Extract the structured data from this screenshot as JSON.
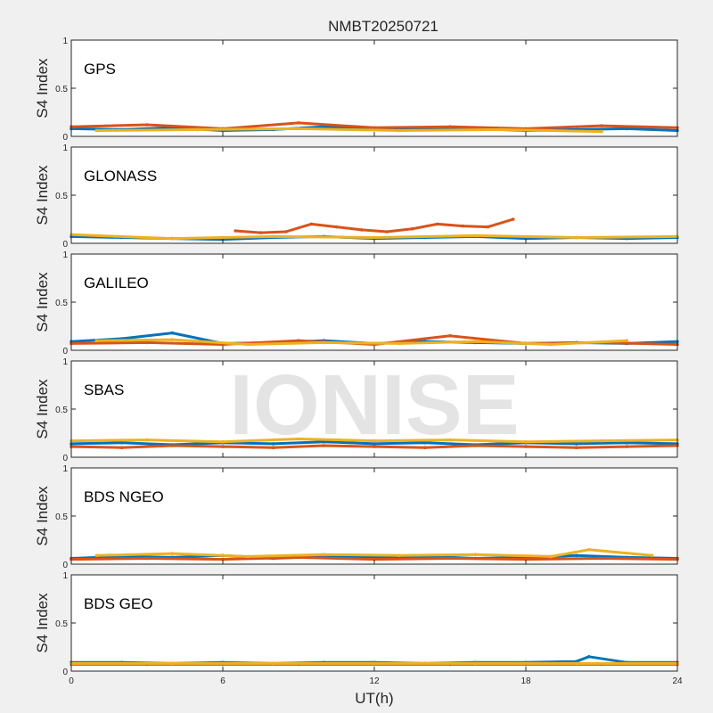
{
  "figure": {
    "title": "NMBT20250721",
    "xlabel": "UT(h)",
    "watermark": "IONISE",
    "x_ticks": [
      0,
      6,
      12,
      18,
      24
    ],
    "y_ticks": [
      0,
      0.5,
      1
    ],
    "xlim": [
      0,
      24
    ],
    "ylim": [
      0,
      1
    ]
  },
  "colors": [
    "#0072BD",
    "#D95319",
    "#EDB120",
    "#7E2F8E",
    "#77AC30",
    "#4DBEEE",
    "#A2142F"
  ],
  "chart_data": [
    {
      "type": "scatter",
      "title": "GPS",
      "ylabel": "S4 Index",
      "xlim": [
        0,
        24
      ],
      "ylim": [
        0,
        1
      ],
      "series": [
        {
          "x": [
            0,
            2,
            4,
            6,
            8,
            10,
            12,
            14,
            16,
            18,
            20,
            22,
            24
          ],
          "y": [
            0.08,
            0.07,
            0.09,
            0.06,
            0.07,
            0.1,
            0.08,
            0.07,
            0.08,
            0.06,
            0.07,
            0.08,
            0.06
          ]
        },
        {
          "x": [
            0,
            3,
            6,
            9,
            12,
            15,
            18,
            21,
            24
          ],
          "y": [
            0.1,
            0.12,
            0.08,
            0.14,
            0.09,
            0.1,
            0.08,
            0.11,
            0.09
          ]
        },
        {
          "x": [
            1,
            5,
            9,
            13,
            17,
            21
          ],
          "y": [
            0.06,
            0.07,
            0.08,
            0.06,
            0.07,
            0.05
          ]
        }
      ]
    },
    {
      "type": "scatter",
      "title": "GLONASS",
      "ylabel": "S4 Index",
      "xlim": [
        0,
        24
      ],
      "ylim": [
        0,
        1
      ],
      "series": [
        {
          "x": [
            0,
            2,
            4,
            6,
            8,
            10,
            12,
            14,
            16,
            18,
            20,
            22,
            24
          ],
          "y": [
            0.07,
            0.06,
            0.05,
            0.04,
            0.06,
            0.07,
            0.05,
            0.06,
            0.07,
            0.05,
            0.06,
            0.05,
            0.06
          ]
        },
        {
          "x": [
            6.5,
            7.5,
            8.5,
            9.5,
            10.5,
            11.5,
            12.5,
            13.5,
            14.5,
            15.5,
            16.5,
            17.5
          ],
          "y": [
            0.13,
            0.11,
            0.12,
            0.2,
            0.17,
            0.14,
            0.12,
            0.15,
            0.2,
            0.18,
            0.17,
            0.25
          ]
        },
        {
          "x": [
            0,
            4,
            8,
            12,
            16,
            20,
            24
          ],
          "y": [
            0.09,
            0.05,
            0.07,
            0.06,
            0.08,
            0.06,
            0.07
          ]
        }
      ]
    },
    {
      "type": "scatter",
      "title": "GALILEO",
      "ylabel": "S4 Index",
      "xlim": [
        0,
        24
      ],
      "ylim": [
        0,
        1
      ],
      "series": [
        {
          "x": [
            0,
            2,
            4,
            6,
            8,
            10,
            12,
            14,
            16,
            18,
            20,
            22,
            24
          ],
          "y": [
            0.09,
            0.12,
            0.18,
            0.07,
            0.08,
            0.1,
            0.07,
            0.09,
            0.08,
            0.07,
            0.08,
            0.07,
            0.09
          ]
        },
        {
          "x": [
            0,
            3,
            6,
            9,
            12,
            15,
            18,
            21,
            24
          ],
          "y": [
            0.07,
            0.08,
            0.06,
            0.1,
            0.06,
            0.15,
            0.07,
            0.08,
            0.06
          ]
        },
        {
          "x": [
            1,
            4,
            7,
            10,
            13,
            16,
            19,
            22
          ],
          "y": [
            0.1,
            0.11,
            0.06,
            0.08,
            0.07,
            0.09,
            0.06,
            0.1
          ]
        }
      ]
    },
    {
      "type": "scatter",
      "title": "SBAS",
      "ylabel": "S4 Index",
      "xlim": [
        0,
        24
      ],
      "ylim": [
        0,
        1
      ],
      "series": [
        {
          "x": [
            0,
            2,
            4,
            6,
            8,
            10,
            12,
            14,
            16,
            18,
            20,
            22,
            24
          ],
          "y": [
            0.14,
            0.15,
            0.13,
            0.15,
            0.14,
            0.16,
            0.14,
            0.15,
            0.13,
            0.15,
            0.14,
            0.15,
            0.14
          ]
        },
        {
          "x": [
            0,
            2,
            4,
            6,
            8,
            10,
            12,
            14,
            16,
            18,
            20,
            22,
            24
          ],
          "y": [
            0.11,
            0.1,
            0.12,
            0.11,
            0.1,
            0.12,
            0.11,
            0.1,
            0.12,
            0.11,
            0.1,
            0.11,
            0.12
          ]
        },
        {
          "x": [
            0,
            3,
            6,
            9,
            12,
            15,
            18,
            21,
            24
          ],
          "y": [
            0.17,
            0.18,
            0.16,
            0.19,
            0.17,
            0.18,
            0.16,
            0.17,
            0.18
          ]
        }
      ]
    },
    {
      "type": "scatter",
      "title": "BDS NGEO",
      "ylabel": "S4 Index",
      "xlim": [
        0,
        24
      ],
      "ylim": [
        0,
        1
      ],
      "series": [
        {
          "x": [
            0,
            2,
            4,
            6,
            8,
            10,
            12,
            14,
            16,
            18,
            20,
            22,
            24
          ],
          "y": [
            0.06,
            0.08,
            0.07,
            0.09,
            0.06,
            0.08,
            0.07,
            0.08,
            0.06,
            0.07,
            0.09,
            0.07,
            0.06
          ]
        },
        {
          "x": [
            0,
            3,
            6,
            9,
            12,
            15,
            18,
            21,
            24
          ],
          "y": [
            0.05,
            0.06,
            0.05,
            0.07,
            0.05,
            0.06,
            0.05,
            0.06,
            0.05
          ]
        },
        {
          "x": [
            1,
            4,
            7,
            10,
            13,
            16,
            19,
            20.5,
            23
          ],
          "y": [
            0.09,
            0.11,
            0.08,
            0.1,
            0.09,
            0.1,
            0.08,
            0.15,
            0.09
          ]
        }
      ]
    },
    {
      "type": "scatter",
      "title": "BDS GEO",
      "ylabel": "S4 Index",
      "xlim": [
        0,
        24
      ],
      "ylim": [
        0,
        1
      ],
      "series": [
        {
          "x": [
            0,
            2,
            4,
            6,
            8,
            10,
            12,
            14,
            16,
            18,
            20,
            20.5,
            22,
            24
          ],
          "y": [
            0.09,
            0.09,
            0.08,
            0.09,
            0.08,
            0.09,
            0.09,
            0.08,
            0.09,
            0.09,
            0.1,
            0.15,
            0.09,
            0.09
          ]
        },
        {
          "x": [
            0,
            3,
            6,
            9,
            12,
            15,
            18,
            21,
            24
          ],
          "y": [
            0.07,
            0.07,
            0.07,
            0.07,
            0.07,
            0.07,
            0.07,
            0.07,
            0.07
          ]
        },
        {
          "x": [
            0,
            4,
            8,
            12,
            16,
            20,
            24
          ],
          "y": [
            0.08,
            0.08,
            0.08,
            0.08,
            0.08,
            0.08,
            0.08
          ]
        }
      ]
    }
  ]
}
